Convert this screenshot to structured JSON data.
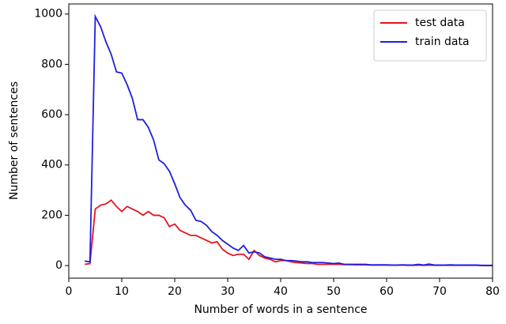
{
  "chart_data": {
    "type": "line",
    "xlabel": "Number of words in a sentence",
    "ylabel": "Number of sentences",
    "x": [
      3,
      4,
      5,
      6,
      7,
      8,
      9,
      10,
      11,
      12,
      13,
      14,
      15,
      16,
      17,
      18,
      19,
      20,
      21,
      22,
      23,
      24,
      25,
      26,
      27,
      28,
      29,
      30,
      31,
      32,
      33,
      34,
      35,
      36,
      37,
      38,
      39,
      40,
      41,
      42,
      43,
      44,
      45,
      46,
      47,
      48,
      49,
      50,
      51,
      52,
      53,
      54,
      55,
      56,
      57,
      58,
      59,
      60,
      61,
      62,
      63,
      64,
      65,
      66,
      67,
      68,
      69,
      70,
      71,
      72,
      73,
      74,
      75,
      76,
      77,
      78,
      79,
      80
    ],
    "series": [
      {
        "name": "test data",
        "color": "#e8121e",
        "values": [
          5,
          8,
          225,
          240,
          245,
          260,
          235,
          215,
          235,
          225,
          215,
          200,
          215,
          200,
          200,
          190,
          155,
          165,
          140,
          130,
          120,
          120,
          110,
          100,
          90,
          95,
          65,
          50,
          40,
          45,
          45,
          25,
          60,
          40,
          30,
          25,
          15,
          20,
          20,
          15,
          12,
          10,
          8,
          8,
          5,
          5,
          5,
          5,
          5,
          4,
          4,
          3,
          3,
          3,
          2,
          2,
          2,
          2,
          2,
          2,
          2,
          1,
          1,
          2,
          1,
          2,
          1,
          1,
          1,
          1,
          1,
          1,
          1,
          1,
          1,
          0,
          0,
          0
        ]
      },
      {
        "name": "train data",
        "color": "#1f1fe0",
        "values": [
          18,
          15,
          990,
          950,
          890,
          840,
          770,
          765,
          720,
          665,
          580,
          580,
          550,
          500,
          420,
          405,
          375,
          325,
          270,
          240,
          220,
          180,
          175,
          160,
          135,
          120,
          100,
          85,
          70,
          60,
          80,
          50,
          55,
          50,
          35,
          30,
          25,
          25,
          20,
          20,
          18,
          15,
          15,
          12,
          12,
          12,
          10,
          8,
          10,
          5,
          5,
          5,
          5,
          5,
          3,
          3,
          3,
          3,
          2,
          2,
          3,
          2,
          2,
          5,
          2,
          6,
          2,
          2,
          2,
          3,
          2,
          2,
          2,
          2,
          2,
          1,
          1,
          1
        ]
      }
    ],
    "xlim": [
      0,
      80
    ],
    "xticks": [
      0,
      10,
      20,
      30,
      40,
      50,
      60,
      70,
      80
    ],
    "ylim": [
      -50,
      1040
    ],
    "yticks": [
      0,
      200,
      400,
      600,
      800,
      1000
    ],
    "legend": "upper right"
  }
}
